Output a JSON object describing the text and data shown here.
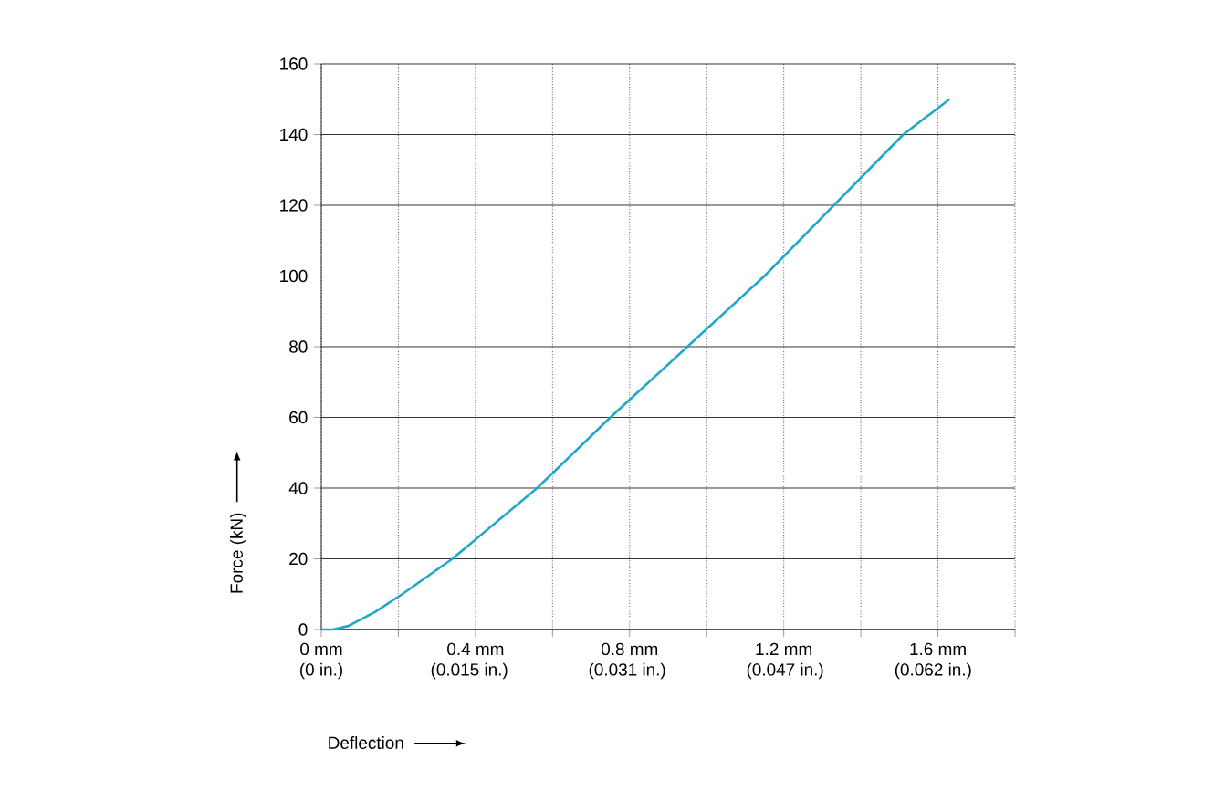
{
  "chart_data": {
    "type": "line",
    "xlabel": "Deflection",
    "ylabel": "Force (kN)",
    "xlim": [
      0,
      1.8
    ],
    "ylim": [
      0,
      160
    ],
    "xticks": [
      {
        "value": 0,
        "label": "0 mm"
      },
      {
        "value": 0.2,
        "label": null
      },
      {
        "value": 0.4,
        "label": "0.4 mm"
      },
      {
        "value": 0.6,
        "label": null
      },
      {
        "value": 0.8,
        "label": "0.8 mm"
      },
      {
        "value": 1.0,
        "label": null
      },
      {
        "value": 1.2,
        "label": "1.2 mm"
      },
      {
        "value": 1.4,
        "label": null
      },
      {
        "value": 1.6,
        "label": "1.6 mm"
      },
      {
        "value": 1.8,
        "label": null
      }
    ],
    "x2lim": [
      0,
      0.0703
    ],
    "x2ticks": [
      {
        "value": 0,
        "label": "(0 in.)"
      },
      {
        "value": 0.015,
        "label": "(0.015 in.)"
      },
      {
        "value": 0.031,
        "label": "(0.031 in.)"
      },
      {
        "value": 0.047,
        "label": "(0.047 in.)"
      },
      {
        "value": 0.062,
        "label": "(0.062 in.)"
      }
    ],
    "yticks": [
      0,
      20,
      40,
      60,
      80,
      100,
      120,
      140,
      160
    ],
    "grid": true,
    "series": [
      {
        "color": "#1fa8c9",
        "x": [
          0,
          0.03,
          0.07,
          0.14,
          0.21,
          0.34,
          0.56,
          0.75,
          0.95,
          1.15,
          1.33,
          1.51,
          1.63
        ],
        "values": [
          0,
          0,
          1,
          5,
          10,
          20,
          40,
          60,
          80,
          100,
          120,
          140,
          150
        ]
      }
    ]
  }
}
